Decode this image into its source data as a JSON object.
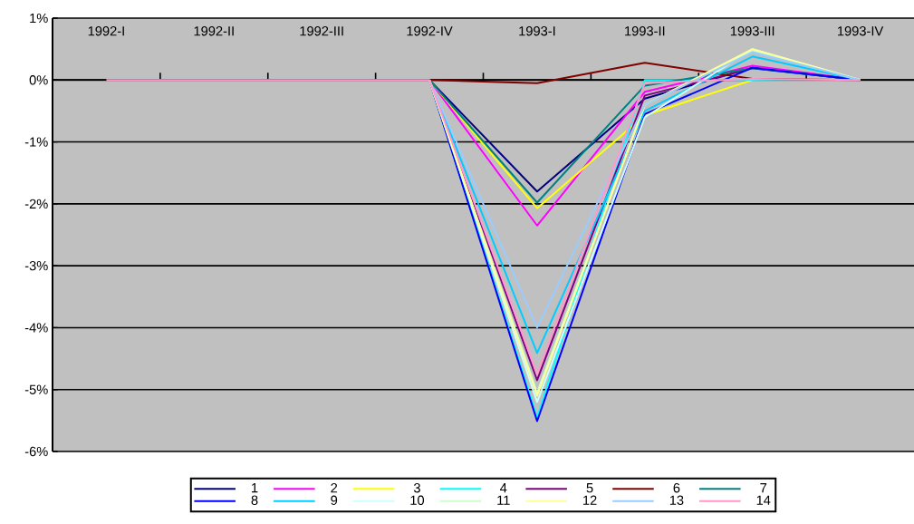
{
  "chart_data": {
    "type": "line",
    "categories": [
      "1992-I",
      "1992-II",
      "1992-III",
      "1992-IV",
      "1993-I",
      "1993-II",
      "1993-III",
      "1993-IV"
    ],
    "series": [
      {
        "name": "1",
        "color": "#000080",
        "values": [
          null,
          null,
          null,
          0,
          -1.8,
          -0.3,
          0.2,
          0
        ]
      },
      {
        "name": "2",
        "color": "#ff00ff",
        "values": [
          null,
          null,
          null,
          0,
          -2.35,
          -0.19,
          0.23,
          0
        ]
      },
      {
        "name": "3",
        "color": "#ffff00",
        "values": [
          null,
          null,
          null,
          0,
          -2.07,
          -0.57,
          0,
          0
        ]
      },
      {
        "name": "4",
        "color": "#00ffff",
        "values": [
          null,
          null,
          null,
          0,
          -5.45,
          0,
          0,
          0
        ]
      },
      {
        "name": "5",
        "color": "#800080",
        "values": [
          null,
          null,
          null,
          0,
          -4.85,
          -0.25,
          0.19,
          0
        ]
      },
      {
        "name": "6",
        "color": "#800000",
        "values": [
          null,
          null,
          null,
          0,
          -0.05,
          0.28,
          0.02,
          0
        ]
      },
      {
        "name": "7",
        "color": "#008080",
        "values": [
          null,
          null,
          null,
          0,
          -1.98,
          -0.09,
          0.19,
          0
        ]
      },
      {
        "name": "8",
        "color": "#0000ff",
        "values": [
          null,
          null,
          null,
          0,
          -5.51,
          -0.55,
          0.2,
          0
        ]
      },
      {
        "name": "9",
        "color": "#00ccff",
        "values": [
          null,
          null,
          null,
          0,
          -4.41,
          -0.5,
          0.38,
          0
        ]
      },
      {
        "name": "10",
        "color": "#ccffff",
        "values": [
          null,
          null,
          null,
          0,
          -5.2,
          -0.6,
          0.5,
          0
        ]
      },
      {
        "name": "11",
        "color": "#ccffcc",
        "values": [
          null,
          null,
          null,
          0,
          -5.05,
          -0.4,
          0.48,
          0
        ]
      },
      {
        "name": "12",
        "color": "#ffff99",
        "values": [
          null,
          null,
          null,
          0,
          -5.1,
          -0.4,
          0.5,
          0
        ]
      },
      {
        "name": "13",
        "color": "#99ccff",
        "values": [
          null,
          null,
          null,
          0,
          -4.0,
          -0.4,
          0.45,
          0
        ]
      },
      {
        "name": "14",
        "color": "#ff99cc",
        "values": [
          0,
          0,
          0,
          0,
          -4.75,
          -0.05,
          0.02,
          0
        ]
      }
    ],
    "ylim": [
      -6,
      1
    ],
    "yticks": [
      {
        "value": -6,
        "label": "-6%"
      },
      {
        "value": -5,
        "label": "-5%"
      },
      {
        "value": -4,
        "label": "-4%"
      },
      {
        "value": -3,
        "label": "-3%"
      },
      {
        "value": -2,
        "label": "-2%"
      },
      {
        "value": -1,
        "label": "-1%"
      },
      {
        "value": 0,
        "label": "0%"
      },
      {
        "value": 1,
        "label": "1%"
      }
    ],
    "grid": "y",
    "legend": "bottom",
    "marker": "none"
  }
}
